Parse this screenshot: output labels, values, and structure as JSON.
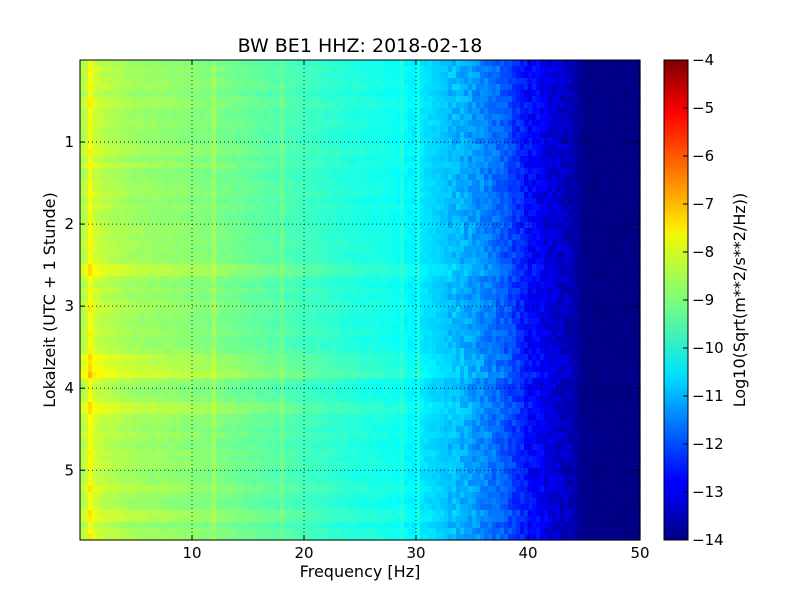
{
  "chart_data": {
    "type": "heatmap",
    "title": "BW BE1 HHZ: 2018-02-18",
    "xlabel": "Frequency [Hz]",
    "ylabel": "Lokalzeit (UTC + 1 Stunde)",
    "colorbar_label": "Log10(Sqrt(m**2/s**2/Hz))",
    "xlim": [
      0,
      50
    ],
    "ylim": [
      0,
      5.85
    ],
    "y_inverted": true,
    "x_ticks": [
      10,
      20,
      30,
      40,
      50
    ],
    "y_ticks": [
      1,
      2,
      3,
      4,
      5
    ],
    "color_range": [
      -14,
      -4
    ],
    "colorbar_ticks": [
      -14,
      -13,
      -12,
      -11,
      -10,
      -9,
      -8,
      -7,
      -6,
      -5,
      -4
    ],
    "colormap": "jet",
    "grid": true,
    "frequency_profile": {
      "x": [
        0,
        1,
        2,
        3,
        5,
        8,
        12,
        16,
        20,
        24,
        28,
        30,
        32,
        34,
        36,
        38,
        40,
        42,
        44,
        45,
        50
      ],
      "values": [
        -8.6,
        -8.1,
        -8.4,
        -8.5,
        -8.7,
        -8.8,
        -9.0,
        -9.3,
        -9.6,
        -9.9,
        -10.1,
        -10.4,
        -10.7,
        -11.0,
        -11.4,
        -11.9,
        -12.6,
        -13.1,
        -13.5,
        -13.9,
        -13.95
      ]
    },
    "vertical_lines": [
      {
        "x": 1.0,
        "delta": 0.4
      },
      {
        "x": 12.0,
        "delta": 0.3
      },
      {
        "x": 18.0,
        "delta": 0.25
      },
      {
        "x": 28.8,
        "delta": 0.25
      },
      {
        "x": 30.1,
        "delta": 0.3
      }
    ],
    "horizontal_bands": [
      {
        "y": 2.57,
        "delta": 0.4
      },
      {
        "y": 3.65,
        "delta": 0.35
      },
      {
        "y": 3.8,
        "delta": 0.55
      },
      {
        "y": 4.25,
        "delta": 0.35
      },
      {
        "y": 5.25,
        "delta": 0.35
      },
      {
        "y": 5.55,
        "delta": 0.35
      }
    ]
  }
}
